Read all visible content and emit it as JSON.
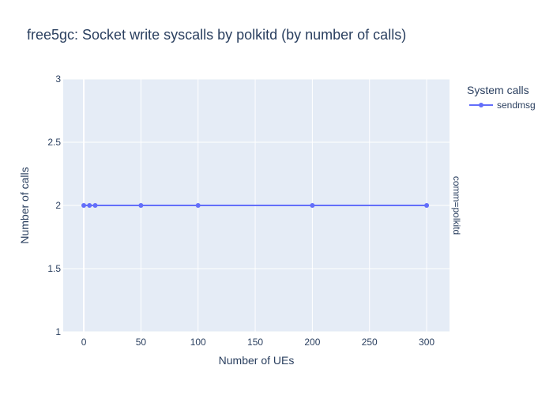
{
  "chart_data": {
    "type": "line",
    "title": "free5gc: Socket write syscalls by polkitd (by number of calls)",
    "xlabel": "Number of UEs",
    "ylabel": "Number of calls",
    "facet_label": "comm=polkitd",
    "legend_title": "System calls",
    "legend_position": "top-right",
    "grid": true,
    "xlim": [
      -18,
      320
    ],
    "ylim": [
      1,
      3
    ],
    "x_ticks": [
      0,
      50,
      100,
      150,
      200,
      250,
      300
    ],
    "y_ticks": [
      1,
      1.5,
      2,
      2.5,
      3
    ],
    "x_tick_labels": [
      "0",
      "50",
      "100",
      "150",
      "200",
      "250",
      "300"
    ],
    "y_tick_labels": [
      "1",
      "1.5",
      "2",
      "2.5",
      "3"
    ],
    "series": [
      {
        "name": "sendmsg",
        "color": "#636efa",
        "x": [
          0,
          5,
          10,
          50,
          100,
          200,
          300
        ],
        "y": [
          2,
          2,
          2,
          2,
          2,
          2,
          2
        ]
      }
    ]
  }
}
